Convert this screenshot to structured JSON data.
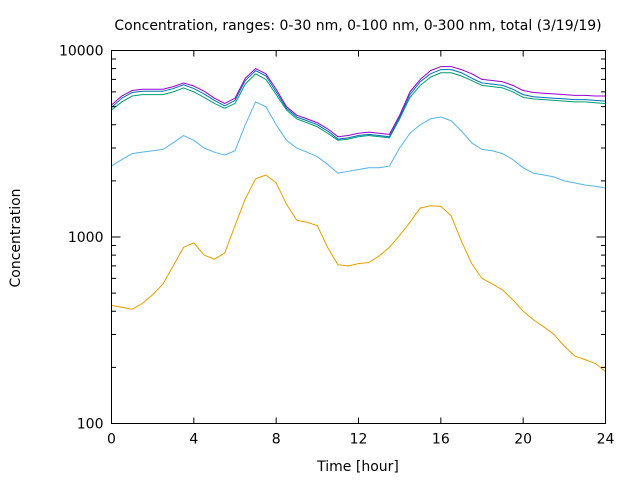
{
  "chart_data": {
    "type": "line",
    "title": "Concentration, ranges: 0-30 nm, 0-100 nm, 0-300 nm, total (3/19/19)",
    "xlabel": "Time [hour]",
    "ylabel": "Concentration",
    "xlim": [
      0,
      24
    ],
    "ylim": [
      100,
      10000
    ],
    "yscale": "log",
    "grid": false,
    "legend": "none",
    "x_ticks": [
      {
        "value": 0,
        "label": "0"
      },
      {
        "value": 4,
        "label": "4"
      },
      {
        "value": 8,
        "label": "8"
      },
      {
        "value": 12,
        "label": "12"
      },
      {
        "value": 16,
        "label": "16"
      },
      {
        "value": 20,
        "label": "20"
      },
      {
        "value": 24,
        "label": "24"
      }
    ],
    "y_ticks": [
      {
        "value": 100,
        "label": "100"
      },
      {
        "value": 1000,
        "label": "1000"
      },
      {
        "value": 10000,
        "label": "10000"
      }
    ],
    "series": [
      {
        "color": "#e69f00",
        "x": [
          0,
          0.5,
          1,
          1.5,
          2,
          2.5,
          3,
          3.5,
          4,
          4.5,
          5,
          5.5,
          6,
          6.5,
          7,
          7.5,
          8,
          8.5,
          9,
          9.5,
          10,
          10.5,
          11,
          11.5,
          12,
          12.5,
          13,
          13.5,
          14,
          14.5,
          15,
          15.5,
          16,
          16.5,
          17,
          17.5,
          18,
          18.5,
          19,
          19.5,
          20,
          20.5,
          21,
          21.5,
          22,
          22.5,
          23,
          23.5,
          24
        ],
        "y": [
          430,
          420,
          410,
          440,
          490,
          560,
          700,
          880,
          930,
          800,
          760,
          820,
          1150,
          1600,
          2050,
          2150,
          1950,
          1500,
          1230,
          1200,
          1150,
          880,
          710,
          700,
          720,
          730,
          790,
          880,
          1020,
          1200,
          1430,
          1470,
          1460,
          1300,
          950,
          720,
          600,
          560,
          520,
          460,
          400,
          360,
          330,
          300,
          260,
          230,
          220,
          210,
          190
        ]
      },
      {
        "color": "#56b4e9",
        "x": [
          0,
          0.5,
          1,
          1.5,
          2,
          2.5,
          3,
          3.5,
          4,
          4.5,
          5,
          5.5,
          6,
          6.5,
          7,
          7.5,
          8,
          8.5,
          9,
          9.5,
          10,
          10.5,
          11,
          11.5,
          12,
          12.5,
          13,
          13.5,
          14,
          14.5,
          15,
          15.5,
          16,
          16.5,
          17,
          17.5,
          18,
          18.5,
          19,
          19.5,
          20,
          20.5,
          21,
          21.5,
          22,
          22.5,
          23,
          23.5,
          24
        ],
        "y": [
          2400,
          2600,
          2800,
          2850,
          2900,
          2950,
          3200,
          3500,
          3300,
          3000,
          2850,
          2750,
          2900,
          4000,
          5300,
          5000,
          4000,
          3300,
          3000,
          2850,
          2700,
          2450,
          2200,
          2250,
          2300,
          2350,
          2350,
          2400,
          3000,
          3600,
          4000,
          4300,
          4400,
          4200,
          3700,
          3200,
          2950,
          2900,
          2800,
          2600,
          2350,
          2200,
          2150,
          2100,
          2000,
          1950,
          1900,
          1870,
          1830
        ]
      },
      {
        "color": "#009e73",
        "x": [
          0,
          0.5,
          1,
          1.5,
          2,
          2.5,
          3,
          3.5,
          4,
          4.5,
          5,
          5.5,
          6,
          6.5,
          7,
          7.5,
          8,
          8.5,
          9,
          9.5,
          10,
          10.5,
          11,
          11.5,
          12,
          12.5,
          13,
          13.5,
          14,
          14.5,
          15,
          15.5,
          16,
          16.5,
          17,
          17.5,
          18,
          18.5,
          19,
          19.5,
          20,
          20.5,
          21,
          21.5,
          22,
          22.5,
          23,
          23.5,
          24
        ],
        "y": [
          4800,
          5300,
          5700,
          5800,
          5800,
          5800,
          6000,
          6300,
          6000,
          5600,
          5200,
          4900,
          5200,
          6600,
          7500,
          7000,
          5800,
          4800,
          4300,
          4100,
          3900,
          3600,
          3300,
          3350,
          3450,
          3500,
          3450,
          3400,
          4300,
          5600,
          6500,
          7200,
          7600,
          7600,
          7300,
          6900,
          6500,
          6400,
          6300,
          6000,
          5600,
          5500,
          5450,
          5400,
          5350,
          5300,
          5300,
          5250,
          5200
        ]
      },
      {
        "color": "#0072b2",
        "x": [
          0,
          0.5,
          1,
          1.5,
          2,
          2.5,
          3,
          3.5,
          4,
          4.5,
          5,
          5.5,
          6,
          6.5,
          7,
          7.5,
          8,
          8.5,
          9,
          9.5,
          10,
          10.5,
          11,
          11.5,
          12,
          12.5,
          13,
          13.5,
          14,
          14.5,
          15,
          15.5,
          16,
          16.5,
          17,
          17.5,
          18,
          18.5,
          19,
          19.5,
          20,
          20.5,
          21,
          21.5,
          22,
          22.5,
          23,
          23.5,
          24
        ],
        "y": [
          4950,
          5550,
          5950,
          6050,
          6050,
          6050,
          6250,
          6550,
          6250,
          5850,
          5400,
          5050,
          5400,
          6900,
          7800,
          7300,
          6000,
          4900,
          4400,
          4200,
          4000,
          3700,
          3350,
          3400,
          3500,
          3550,
          3500,
          3450,
          4400,
          5800,
          6800,
          7500,
          7900,
          7900,
          7600,
          7100,
          6700,
          6600,
          6500,
          6200,
          5800,
          5650,
          5600,
          5550,
          5500,
          5450,
          5450,
          5400,
          5350
        ]
      },
      {
        "color": "#9400d3",
        "x": [
          0,
          0.5,
          1,
          1.5,
          2,
          2.5,
          3,
          3.5,
          4,
          4.5,
          5,
          5.5,
          6,
          6.5,
          7,
          7.5,
          8,
          8.5,
          9,
          9.5,
          10,
          10.5,
          11,
          11.5,
          12,
          12.5,
          13,
          13.5,
          14,
          14.5,
          15,
          15.5,
          16,
          16.5,
          17,
          17.5,
          18,
          18.5,
          19,
          19.5,
          20,
          20.5,
          21,
          21.5,
          22,
          22.5,
          23,
          23.5,
          24
        ],
        "y": [
          5100,
          5700,
          6100,
          6200,
          6200,
          6200,
          6400,
          6700,
          6450,
          6050,
          5550,
          5200,
          5550,
          7100,
          8000,
          7500,
          6200,
          5000,
          4500,
          4300,
          4100,
          3800,
          3450,
          3500,
          3600,
          3650,
          3600,
          3550,
          4500,
          6000,
          7000,
          7800,
          8200,
          8200,
          7900,
          7500,
          7000,
          6900,
          6800,
          6500,
          6100,
          5950,
          5900,
          5850,
          5800,
          5750,
          5750,
          5700,
          5700
        ]
      }
    ]
  }
}
